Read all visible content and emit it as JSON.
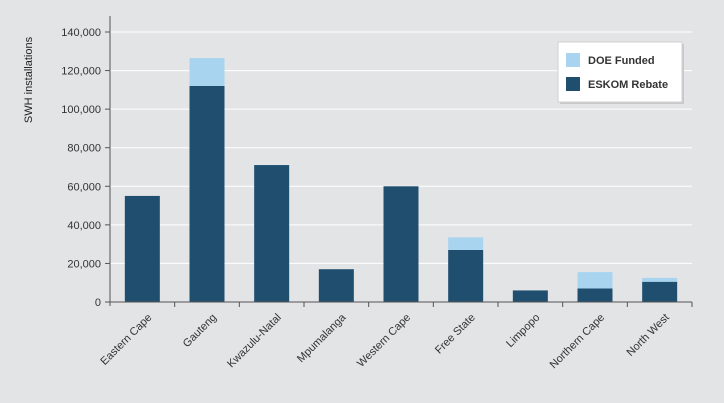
{
  "chart_data": {
    "type": "bar",
    "stacked": true,
    "ylabel": "SWH installations",
    "xlabel": "",
    "ylim": [
      0,
      140000
    ],
    "yticks": [
      0,
      20000,
      40000,
      60000,
      80000,
      100000,
      120000,
      140000
    ],
    "ytick_labels": [
      "0",
      "20,000",
      "40,000",
      "60,000",
      "80,000",
      "100,000",
      "120,000",
      "140,000"
    ],
    "grid": true,
    "legend_position": "top-right",
    "categories": [
      "Eastern Cape",
      "Gauteng",
      "Kwazulu-Natal",
      "Mpumalanga",
      "Western Cape",
      "Free State",
      "Limpopo",
      "Northern Cape",
      "North West"
    ],
    "series": [
      {
        "name": "ESKOM Rebate",
        "color": "#1f4e6f",
        "values": [
          55000,
          112000,
          71000,
          17000,
          60000,
          27000,
          6000,
          7000,
          10500
        ]
      },
      {
        "name": "DOE Funded",
        "color": "#a9d4f0",
        "values": [
          0,
          14500,
          0,
          0,
          0,
          6500,
          0,
          8500,
          2000
        ]
      }
    ]
  }
}
